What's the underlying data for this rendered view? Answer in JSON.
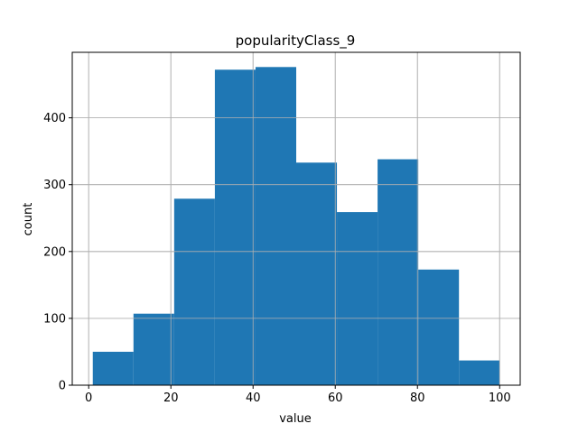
{
  "chart_data": {
    "type": "bar",
    "subtype": "histogram",
    "title": "popularityClass_9",
    "xlabel": "value",
    "ylabel": "count",
    "bins": [
      {
        "start": 1.0,
        "end": 10.9,
        "count": 50
      },
      {
        "start": 10.9,
        "end": 20.8,
        "count": 107
      },
      {
        "start": 20.8,
        "end": 30.7,
        "count": 279
      },
      {
        "start": 30.7,
        "end": 40.6,
        "count": 472
      },
      {
        "start": 40.6,
        "end": 50.5,
        "count": 476
      },
      {
        "start": 50.5,
        "end": 60.4,
        "count": 333
      },
      {
        "start": 60.4,
        "end": 70.3,
        "count": 259
      },
      {
        "start": 70.3,
        "end": 80.2,
        "count": 338
      },
      {
        "start": 80.2,
        "end": 90.1,
        "count": 173
      },
      {
        "start": 90.1,
        "end": 100.0,
        "count": 37
      }
    ],
    "xlim": [
      -4,
      105
    ],
    "ylim": [
      0,
      498
    ],
    "xticks": [
      0,
      20,
      40,
      60,
      80,
      100
    ],
    "yticks": [
      0,
      100,
      200,
      300,
      400
    ],
    "xtick_labels": [
      "0",
      "20",
      "40",
      "60",
      "80",
      "100"
    ],
    "ytick_labels": [
      "0",
      "100",
      "200",
      "300",
      "400"
    ],
    "grid": true,
    "bar_color": "#1f77b4",
    "grid_color": "#b0b0b0"
  }
}
